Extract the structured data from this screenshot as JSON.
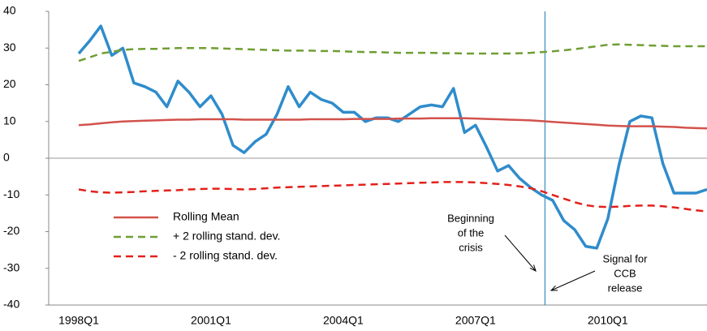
{
  "chart_data": {
    "type": "line",
    "categories": [
      "1998Q1",
      null,
      null,
      null,
      null,
      null,
      null,
      null,
      null,
      null,
      null,
      null,
      "2001Q1",
      null,
      null,
      null,
      null,
      null,
      null,
      null,
      null,
      null,
      null,
      null,
      "2004Q1",
      null,
      null,
      null,
      null,
      null,
      null,
      null,
      null,
      null,
      null,
      null,
      "2007Q1",
      null,
      null,
      null,
      null,
      null,
      null,
      null,
      null,
      null,
      null,
      null,
      "2010Q1",
      null,
      null,
      null,
      null,
      null,
      null,
      null,
      null,
      null
    ],
    "ylim": [
      -40,
      40
    ],
    "yticks": [
      -40,
      -30,
      -20,
      -10,
      0,
      10,
      20,
      30,
      40
    ],
    "series": [
      {
        "color": "#2f8ccb",
        "style": "solid",
        "values": [
          28.5,
          32,
          36,
          28,
          30,
          20.5,
          19.5,
          18,
          14,
          21,
          18,
          14,
          17,
          12,
          3.5,
          1.5,
          4.5,
          6.5,
          12,
          19.5,
          14,
          18,
          16,
          15,
          12.5,
          12.5,
          10,
          11,
          11,
          10,
          12,
          14,
          14.5,
          14,
          19,
          7,
          9,
          3,
          -3.5,
          -2,
          -5.5,
          -8,
          -10,
          -11.5,
          -17,
          -19.5,
          -24,
          -24.5,
          -16.5,
          -2,
          10,
          11.5,
          11,
          -1.5,
          -9.5,
          -9.5,
          -9.5,
          -8.5
        ]
      },
      {
        "name": "Rolling  Mean",
        "color": "#d2524c",
        "style": "solid",
        "values": [
          9,
          9.2,
          9.5,
          9.8,
          10,
          10.1,
          10.2,
          10.3,
          10.4,
          10.5,
          10.5,
          10.6,
          10.6,
          10.6,
          10.6,
          10.5,
          10.5,
          10.5,
          10.5,
          10.5,
          10.5,
          10.6,
          10.6,
          10.6,
          10.6,
          10.7,
          10.7,
          10.7,
          10.7,
          10.8,
          10.8,
          10.8,
          10.9,
          10.9,
          10.9,
          10.9,
          10.8,
          10.7,
          10.6,
          10.5,
          10.4,
          10.3,
          10.1,
          9.9,
          9.7,
          9.5,
          9.3,
          9.1,
          8.9,
          8.8,
          8.7,
          8.7,
          8.7,
          8.6,
          8.5,
          8.3,
          8.2,
          8.1
        ]
      },
      {
        "name": "+ 2 rolling stand. dev.",
        "color": "#6f9e34",
        "style": "dashed",
        "values": [
          26.5,
          27.5,
          28.5,
          29,
          29.5,
          29.7,
          29.8,
          29.8,
          29.9,
          30,
          30,
          30,
          30,
          29.9,
          29.8,
          29.7,
          29.6,
          29.5,
          29.4,
          29.3,
          29.3,
          29.3,
          29.2,
          29.2,
          29.1,
          29,
          28.9,
          28.9,
          28.8,
          28.7,
          28.7,
          28.7,
          28.7,
          28.6,
          28.6,
          28.5,
          28.5,
          28.5,
          28.5,
          28.5,
          28.6,
          28.7,
          28.9,
          29.1,
          29.4,
          29.7,
          30.1,
          30.5,
          30.9,
          31,
          30.9,
          30.8,
          30.7,
          30.6,
          30.5,
          30.5,
          30.5,
          30.5
        ]
      },
      {
        "name": "- 2 rolling stand. dev.",
        "color": "#e3201b",
        "style": "dashed",
        "values": [
          -8.5,
          -9,
          -9.3,
          -9.4,
          -9.3,
          -9.2,
          -9,
          -8.9,
          -8.8,
          -8.7,
          -8.5,
          -8.4,
          -8.3,
          -8.3,
          -8.4,
          -8.5,
          -8.4,
          -8.2,
          -8,
          -7.9,
          -7.8,
          -7.7,
          -7.6,
          -7.5,
          -7.4,
          -7.3,
          -7.2,
          -7.1,
          -7,
          -6.9,
          -6.8,
          -6.7,
          -6.6,
          -6.5,
          -6.5,
          -6.5,
          -6.6,
          -6.8,
          -7,
          -7.3,
          -7.7,
          -8.2,
          -9,
          -10,
          -11,
          -12,
          -12.8,
          -13.2,
          -13.3,
          -13.2,
          -13,
          -12.9,
          -12.9,
          -13.1,
          -13.4,
          -13.8,
          -14.2,
          -14.5
        ]
      }
    ],
    "annotations": [
      [
        "Beginning",
        "of the",
        "crisis"
      ],
      [
        "Signal for",
        "CCB",
        "release"
      ]
    ]
  }
}
